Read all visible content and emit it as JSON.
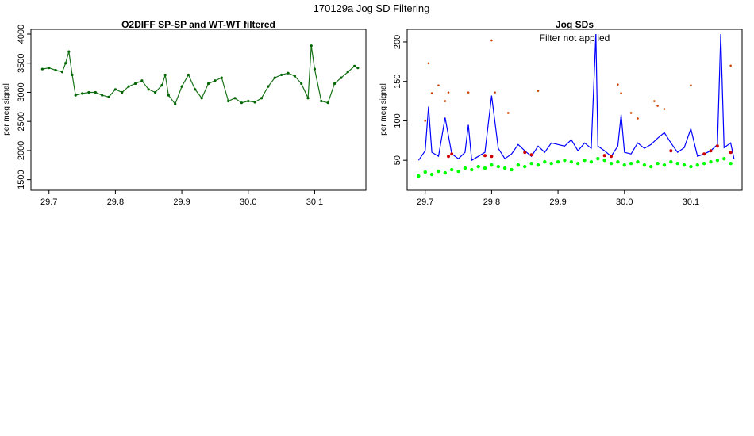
{
  "page": {
    "suptitle": "170129a   Jog SD Filtering"
  },
  "chart_data": [
    {
      "type": "scatter",
      "title": "O2DIFF SP-SP and WT-WT filtered",
      "xlabel": "",
      "ylabel": "per meg signal",
      "xlim": [
        29.68,
        30.17
      ],
      "ylim": [
        1400,
        4000
      ],
      "xticks": [
        "29.7",
        "29.8",
        "29.9",
        "30.0",
        "30.1"
      ],
      "yticks": [
        "1500",
        "2000",
        "2500",
        "3000",
        "3500",
        "4000"
      ],
      "grid": false,
      "colors": {
        "points": "#006400"
      },
      "series": [
        {
          "marker": "point",
          "x": [
            29.69,
            29.7,
            29.71,
            29.72,
            29.725,
            29.73,
            29.735,
            29.74,
            29.75,
            29.76,
            29.77,
            29.78,
            29.79,
            29.8,
            29.81,
            29.82,
            29.83,
            29.84,
            29.85,
            29.86,
            29.87,
            29.875,
            29.88,
            29.89,
            29.9,
            29.91,
            29.92,
            29.93,
            29.94,
            29.95,
            29.96,
            29.97,
            29.98,
            29.99,
            30.0,
            30.01,
            30.02,
            30.03,
            30.04,
            30.05,
            30.06,
            30.07,
            30.08,
            30.09,
            30.095,
            30.1,
            30.11,
            30.12,
            30.13,
            30.14,
            30.15,
            30.16,
            30.165
          ],
          "y": [
            3400,
            3420,
            3380,
            3350,
            3500,
            3700,
            3300,
            2950,
            2980,
            3000,
            3000,
            2950,
            2920,
            3050,
            3000,
            3100,
            3150,
            3200,
            3050,
            3000,
            3120,
            3300,
            2950,
            2800,
            3100,
            3300,
            3050,
            2900,
            3150,
            3200,
            3250,
            2850,
            2900,
            2820,
            2850,
            2830,
            2900,
            3100,
            3250,
            3300,
            3330,
            3280,
            3150,
            2900,
            3800,
            3400,
            2850,
            2820,
            3150,
            3250,
            3350,
            3450,
            3420
          ]
        }
      ]
    },
    {
      "type": "line",
      "title": "Jog SDs",
      "annotations": [
        "Filter not applied"
      ],
      "xlabel": "",
      "ylabel": "per meg signal",
      "xlim": [
        29.68,
        30.17
      ],
      "ylim": [
        18,
        210
      ],
      "xticks": [
        "29.7",
        "29.8",
        "29.9",
        "30.0",
        "30.1"
      ],
      "yticks": [
        "50",
        "100",
        "150",
        "200"
      ],
      "grid": false,
      "colors": {
        "line": "#0000ff",
        "fill_points": "#00ff00",
        "marked_points": "#cc0000",
        "outliers": "#cc4400"
      },
      "series": [
        {
          "marker": "line",
          "x": [
            29.69,
            29.7,
            29.705,
            29.71,
            29.72,
            29.73,
            29.74,
            29.75,
            29.76,
            29.765,
            29.77,
            29.78,
            29.79,
            29.8,
            29.81,
            29.82,
            29.83,
            29.84,
            29.85,
            29.86,
            29.87,
            29.88,
            29.89,
            29.9,
            29.91,
            29.92,
            29.93,
            29.94,
            29.95,
            29.957,
            29.96,
            29.97,
            29.98,
            29.99,
            29.995,
            30.0,
            30.01,
            30.02,
            30.03,
            30.04,
            30.05,
            30.06,
            30.07,
            30.08,
            30.09,
            30.1,
            30.11,
            30.12,
            30.13,
            30.14,
            30.145,
            30.15,
            30.16,
            30.165
          ],
          "y": [
            50,
            62,
            118,
            60,
            55,
            104,
            58,
            52,
            60,
            95,
            50,
            55,
            60,
            132,
            65,
            52,
            58,
            70,
            62,
            55,
            68,
            60,
            72,
            70,
            68,
            76,
            62,
            72,
            65,
            210,
            68,
            62,
            55,
            68,
            108,
            60,
            58,
            72,
            65,
            70,
            78,
            85,
            72,
            60,
            66,
            90,
            55,
            58,
            62,
            70,
            210,
            66,
            72,
            52
          ]
        },
        {
          "marker": "point",
          "x": [
            29.69,
            29.7,
            29.71,
            29.72,
            29.73,
            29.74,
            29.75,
            29.76,
            29.77,
            29.78,
            29.79,
            29.8,
            29.81,
            29.82,
            29.83,
            29.84,
            29.85,
            29.86,
            29.87,
            29.88,
            29.89,
            29.9,
            29.91,
            29.92,
            29.93,
            29.94,
            29.95,
            29.96,
            29.97,
            29.98,
            29.99,
            30.0,
            30.01,
            30.02,
            30.03,
            30.04,
            30.05,
            30.06,
            30.07,
            30.08,
            30.09,
            30.1,
            30.11,
            30.12,
            30.13,
            30.14,
            30.15,
            30.16
          ],
          "y": [
            30,
            35,
            32,
            36,
            34,
            38,
            36,
            40,
            38,
            42,
            40,
            44,
            42,
            40,
            38,
            44,
            42,
            46,
            44,
            48,
            46,
            48,
            50,
            48,
            46,
            50,
            48,
            52,
            50,
            46,
            48,
            44,
            46,
            48,
            44,
            42,
            46,
            44,
            48,
            46,
            44,
            42,
            44,
            46,
            48,
            50,
            52,
            46
          ]
        },
        {
          "marker": "point",
          "x": [
            29.735,
            29.74,
            29.79,
            29.8,
            29.85,
            29.86,
            29.97,
            29.98,
            30.07,
            30.12,
            30.13,
            30.14,
            30.16
          ],
          "y": [
            55,
            58,
            56,
            55,
            60,
            57,
            56,
            55,
            62,
            58,
            62,
            68,
            60
          ]
        },
        {
          "marker": "point",
          "x": [
            29.7,
            29.705,
            29.71,
            29.72,
            29.73,
            29.735,
            29.765,
            29.8,
            29.805,
            29.825,
            29.87,
            29.99,
            29.995,
            30.01,
            30.02,
            30.045,
            30.05,
            30.06,
            30.1,
            30.16
          ],
          "y": [
            100,
            173,
            135,
            145,
            125,
            136,
            136,
            202,
            136,
            110,
            138,
            146,
            135,
            110,
            103,
            125,
            119,
            115,
            145,
            170
          ]
        }
      ]
    }
  ]
}
